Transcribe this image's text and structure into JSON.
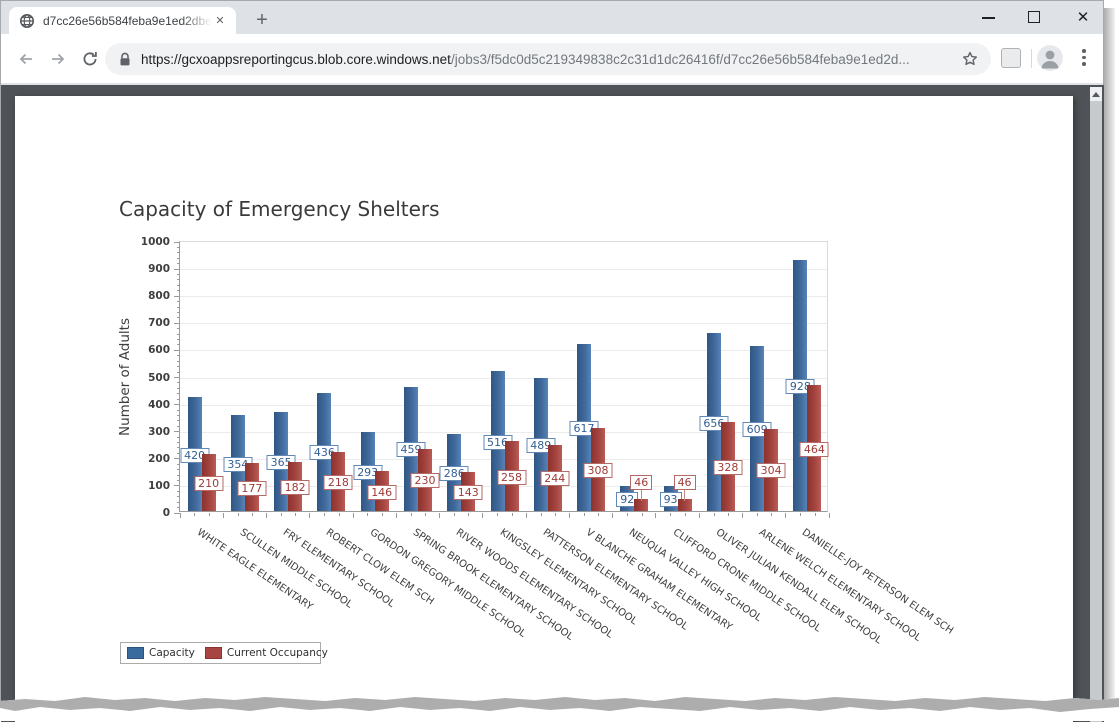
{
  "browser": {
    "tab_title": "d7cc26e56b584feba9e1ed2dbe9",
    "new_tab_label": "+",
    "url_host": "https://gcxoappsreportingcus.blob.core.windows.net",
    "url_path": "/jobs3/f5dc0d5c219349838c2c31d1dc26416f/d7cc26e56b584feba9e1ed2d..."
  },
  "chart_data": {
    "type": "bar",
    "title": "Capacity of Emergency Shelters",
    "xlabel": "",
    "ylabel": "Number of Adults",
    "ylim": [
      0,
      1000
    ],
    "ytick_interval": 100,
    "grid": true,
    "legend_position": "bottom-left",
    "bar_labels": "boxed values shown on every bar",
    "categories": [
      "WHITE EAGLE ELEMENTARY",
      "SCULLEN MIDDLE SCHOOL",
      "FRY ELEMENTARY SCHOOL",
      "ROBERT CLOW ELEM SCH",
      "GORDON GREGORY MIDDLE SCHOOL",
      "SPRING BROOK ELEMENTARY SCHOOL",
      "RIVER WOODS ELEMENTARY SCHOOL",
      "KINGSLEY ELEMENTARY SCHOOL",
      "PATTERSON ELEMENTARY SCHOOL",
      "V BLANCHE GRAHAM ELEMENTARY",
      "NEUQUA VALLEY HIGH SCHOOL",
      "CLIFFORD CRONE MIDDLE SCHOOL",
      "OLIVER JULIAN KENDALL ELEM SCHOOL",
      "ARLENE WELCH ELEMENTARY SCHOOL",
      "DANIELLE-JOY PETERSON ELEM SCH"
    ],
    "series": [
      {
        "name": "Capacity",
        "color": "#3A6B9E",
        "values": [
          420,
          354,
          365,
          436,
          293,
          459,
          286,
          516,
          489,
          617,
          92,
          93,
          656,
          609,
          928
        ]
      },
      {
        "name": "Current Occupancy",
        "color": "#A64542",
        "values": [
          210,
          177,
          182,
          218,
          146,
          230,
          143,
          258,
          244,
          308,
          46,
          46,
          328,
          304,
          464
        ]
      }
    ]
  }
}
